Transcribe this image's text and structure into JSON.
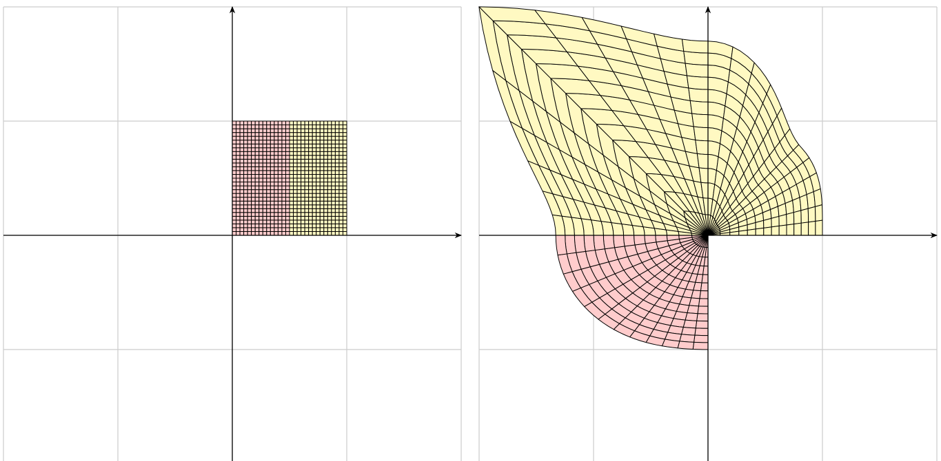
{
  "chart_data": [
    {
      "type": "square-grid",
      "xlim": [
        -2,
        2
      ],
      "ylim": [
        -2,
        2
      ],
      "xticks": [
        -2,
        -1,
        0,
        1,
        2
      ],
      "yticks": [
        -2,
        -1,
        0,
        1,
        2
      ],
      "grid": true
    },
    {
      "type": "polar-grid",
      "xlim": [
        -2,
        2
      ],
      "ylim": [
        -2,
        2
      ],
      "xticks": [
        -2,
        -1,
        0,
        1,
        2
      ],
      "yticks": [
        -2,
        -1,
        0,
        1,
        2
      ],
      "grid": true
    }
  ]
}
